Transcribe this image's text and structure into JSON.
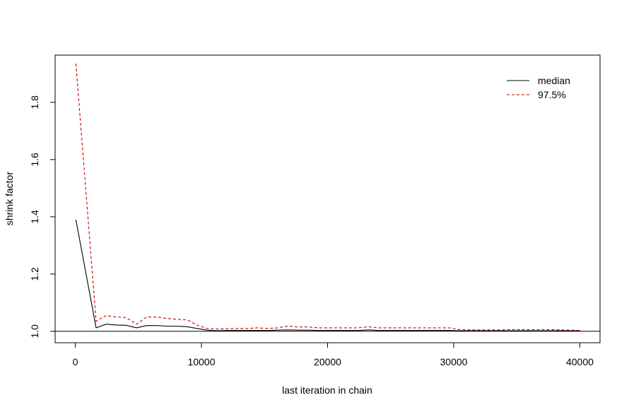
{
  "chart_data": {
    "type": "line",
    "title": "",
    "xlabel": "last iteration in chain",
    "ylabel": "shrink factor",
    "xlim": [
      -1600,
      41600
    ],
    "ylim": [
      0.96,
      1.965
    ],
    "x_ticks": [
      0,
      10000,
      20000,
      30000,
      40000
    ],
    "x_tick_labels": [
      "0",
      "10000",
      "20000",
      "30000",
      "40000"
    ],
    "y_ticks": [
      1.0,
      1.2,
      1.4,
      1.6,
      1.8
    ],
    "y_tick_labels": [
      "1.0",
      "1.2",
      "1.4",
      "1.6",
      "1.8"
    ],
    "reference_line": 1.0,
    "grid": false,
    "legend_position": "top-right",
    "x": [
      50,
      1650,
      2450,
      3250,
      4050,
      4850,
      5650,
      6450,
      7250,
      8050,
      8850,
      9650,
      10450,
      11250,
      12050,
      12850,
      13650,
      14450,
      15250,
      16050,
      16850,
      17650,
      18450,
      19250,
      20050,
      20850,
      21650,
      22450,
      23250,
      24050,
      24850,
      25650,
      26450,
      27250,
      28050,
      28850,
      29650,
      30450,
      31250,
      32050,
      32850,
      33650,
      34450,
      35250,
      36050,
      36850,
      37650,
      38450,
      39250,
      40050
    ],
    "series": [
      {
        "name": "median",
        "color": "#000000",
        "dash": "solid",
        "values": [
          1.39,
          1.012,
          1.025,
          1.022,
          1.021,
          1.012,
          1.02,
          1.02,
          1.018,
          1.018,
          1.016,
          1.01,
          1.004,
          1.002,
          1.003,
          1.003,
          1.003,
          1.003,
          1.003,
          1.004,
          1.005,
          1.004,
          1.004,
          1.003,
          1.003,
          1.003,
          1.003,
          1.003,
          1.005,
          1.003,
          1.003,
          1.003,
          1.003,
          1.003,
          1.003,
          1.003,
          1.003,
          1.002,
          1.002,
          1.002,
          1.002,
          1.002,
          1.002,
          1.002,
          1.002,
          1.002,
          1.002,
          1.002,
          1.002,
          1.002
        ]
      },
      {
        "name": "97.5%",
        "color": "#cc0000",
        "dash": "dashed",
        "values": [
          1.935,
          1.035,
          1.055,
          1.05,
          1.048,
          1.025,
          1.05,
          1.05,
          1.045,
          1.042,
          1.04,
          1.022,
          1.01,
          1.008,
          1.009,
          1.01,
          1.01,
          1.012,
          1.01,
          1.012,
          1.018,
          1.015,
          1.015,
          1.012,
          1.012,
          1.012,
          1.012,
          1.012,
          1.016,
          1.012,
          1.012,
          1.012,
          1.012,
          1.012,
          1.012,
          1.012,
          1.012,
          1.006,
          1.005,
          1.005,
          1.005,
          1.005,
          1.006,
          1.006,
          1.006,
          1.006,
          1.006,
          1.005,
          1.004,
          1.003
        ]
      }
    ]
  }
}
